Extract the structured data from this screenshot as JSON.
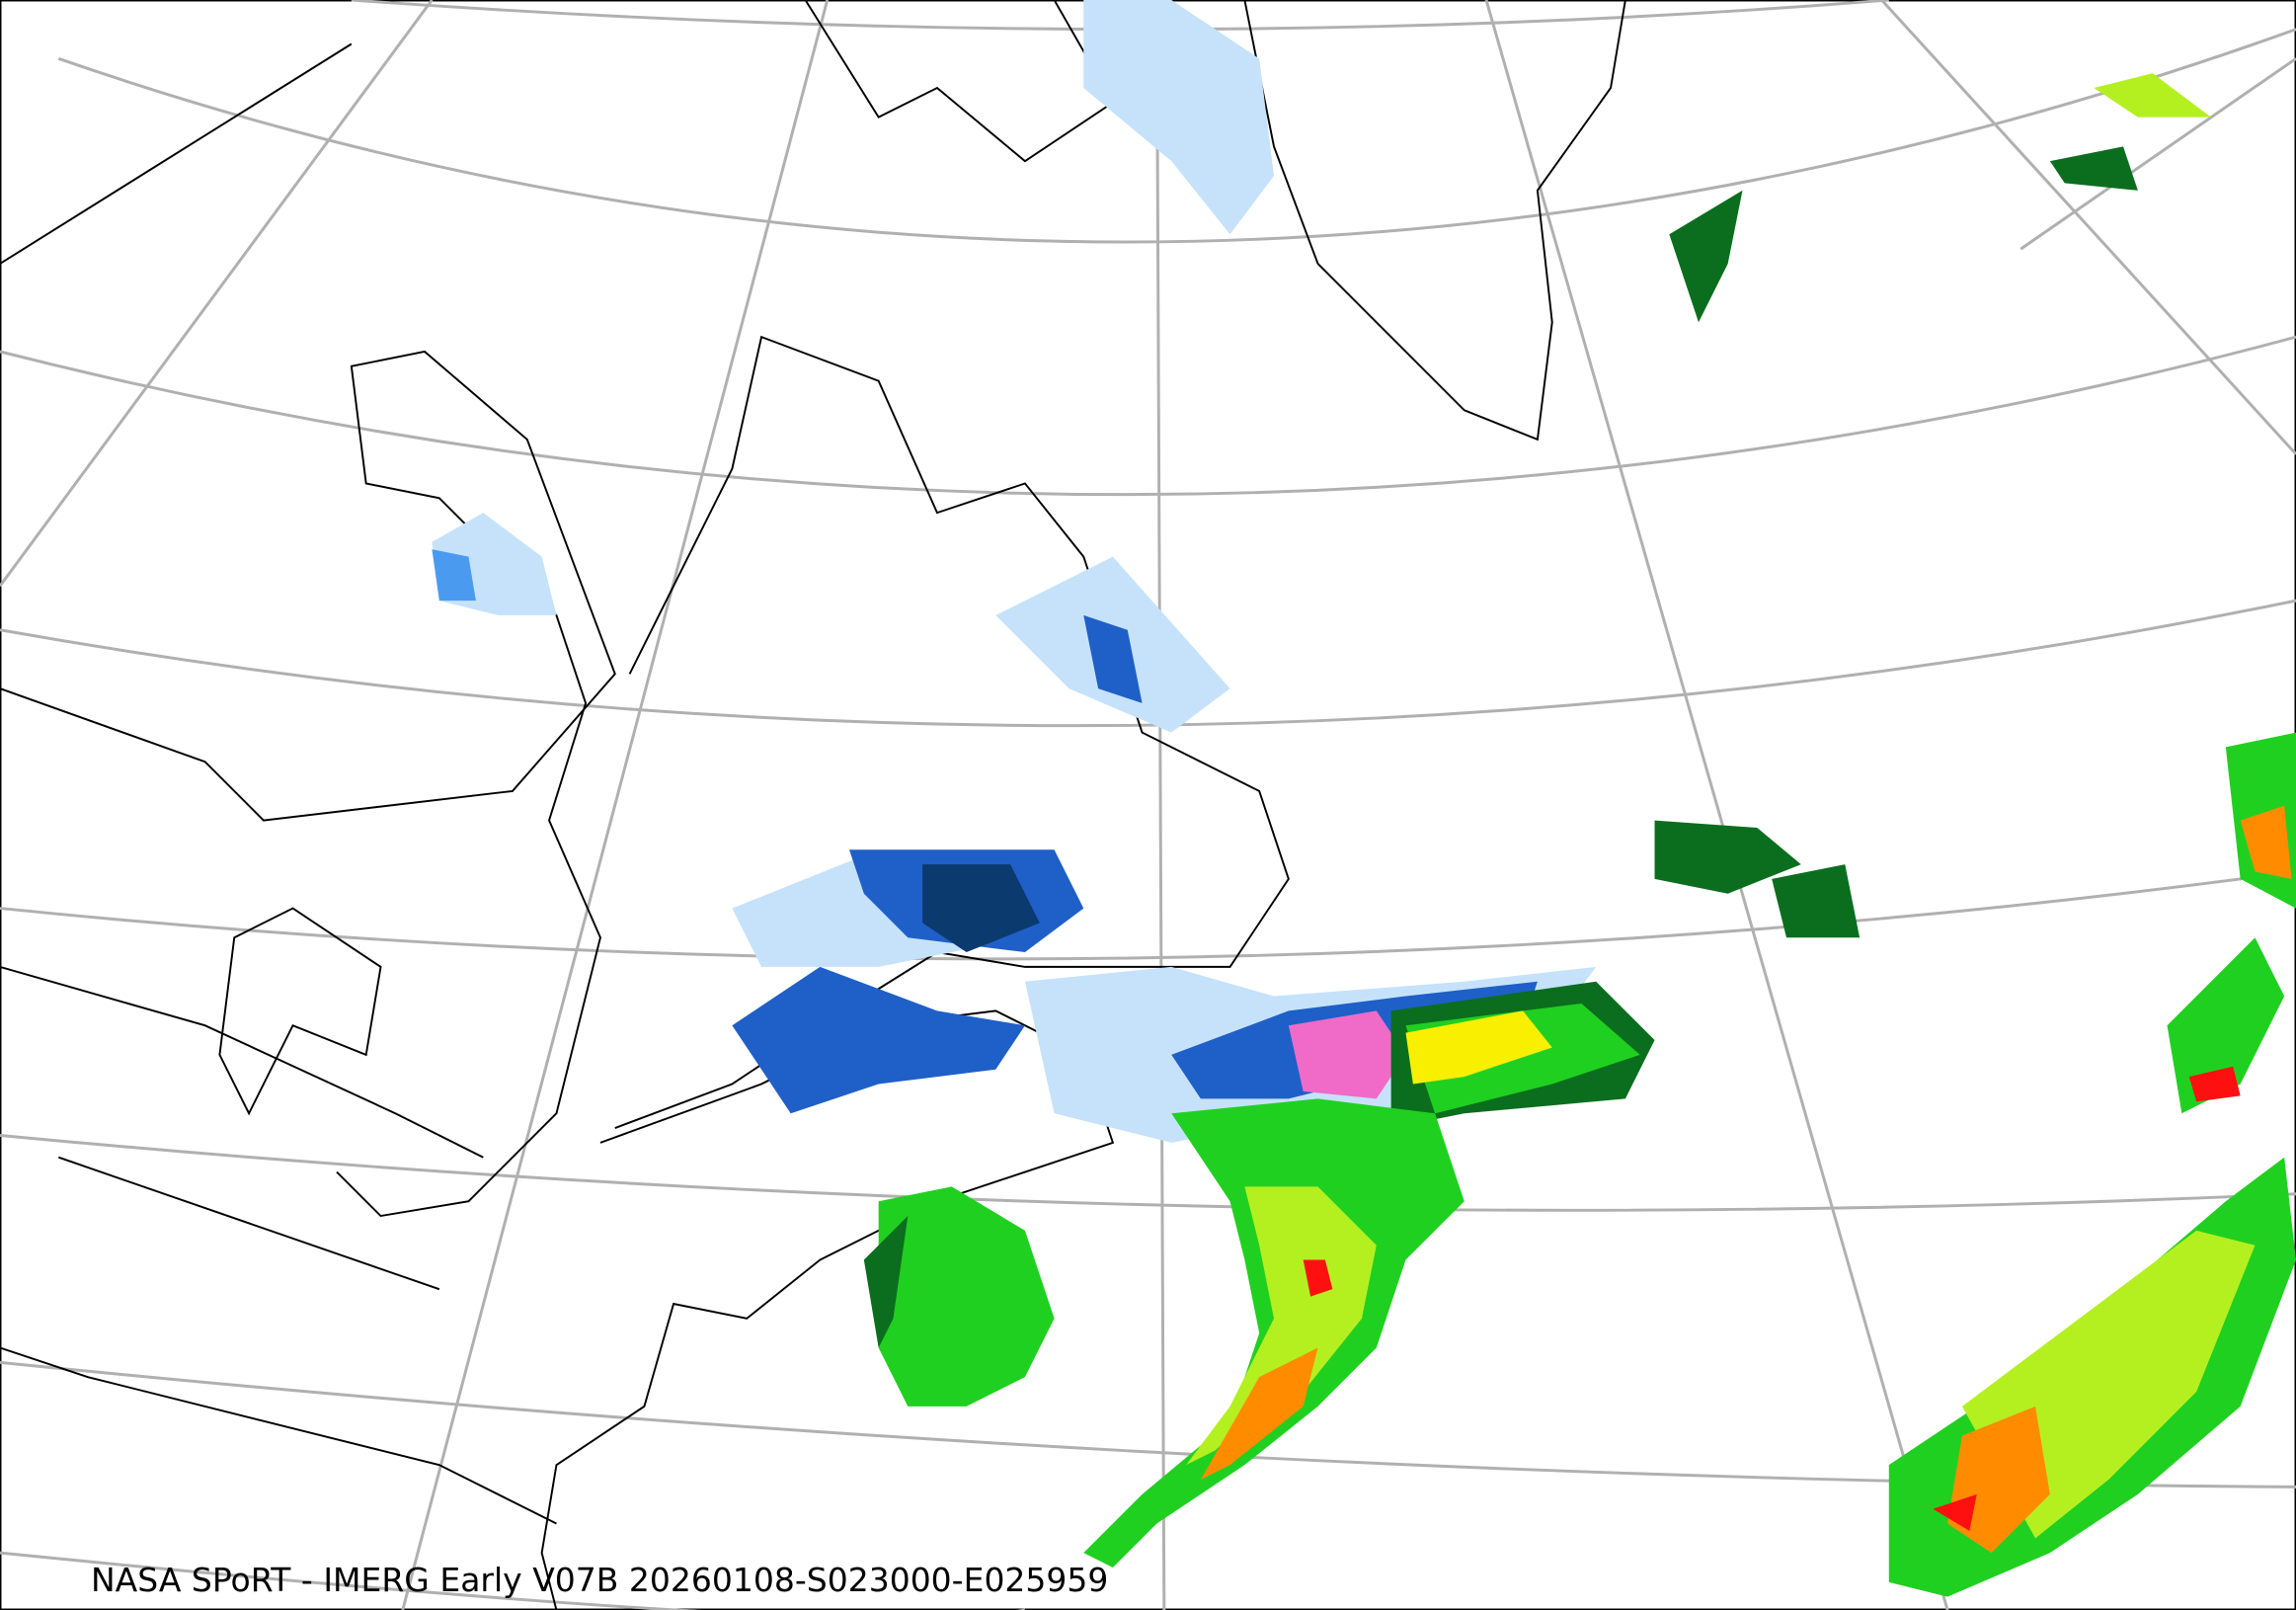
{
  "caption": "NASA SPoRT - IMERG Early V07B 20260108-S023000-E025959",
  "colors": {
    "graticule": "#b0b0b0",
    "coastline": "#000000",
    "snow_light": "#c6e2fb",
    "snow_medium": "#4a9bf0",
    "snow_heavy": "#1f5fc8",
    "snow_very_heavy": "#0b3a6e",
    "mixed": "#f06bc8",
    "rain_light": "#0a6e1e",
    "rain_moderate": "#20d020",
    "rain_heavier": "#b4f020",
    "rain_heavy": "#f8f000",
    "rain_very_heavy": "#ff8c00",
    "rain_extreme": "#ff1010"
  }
}
